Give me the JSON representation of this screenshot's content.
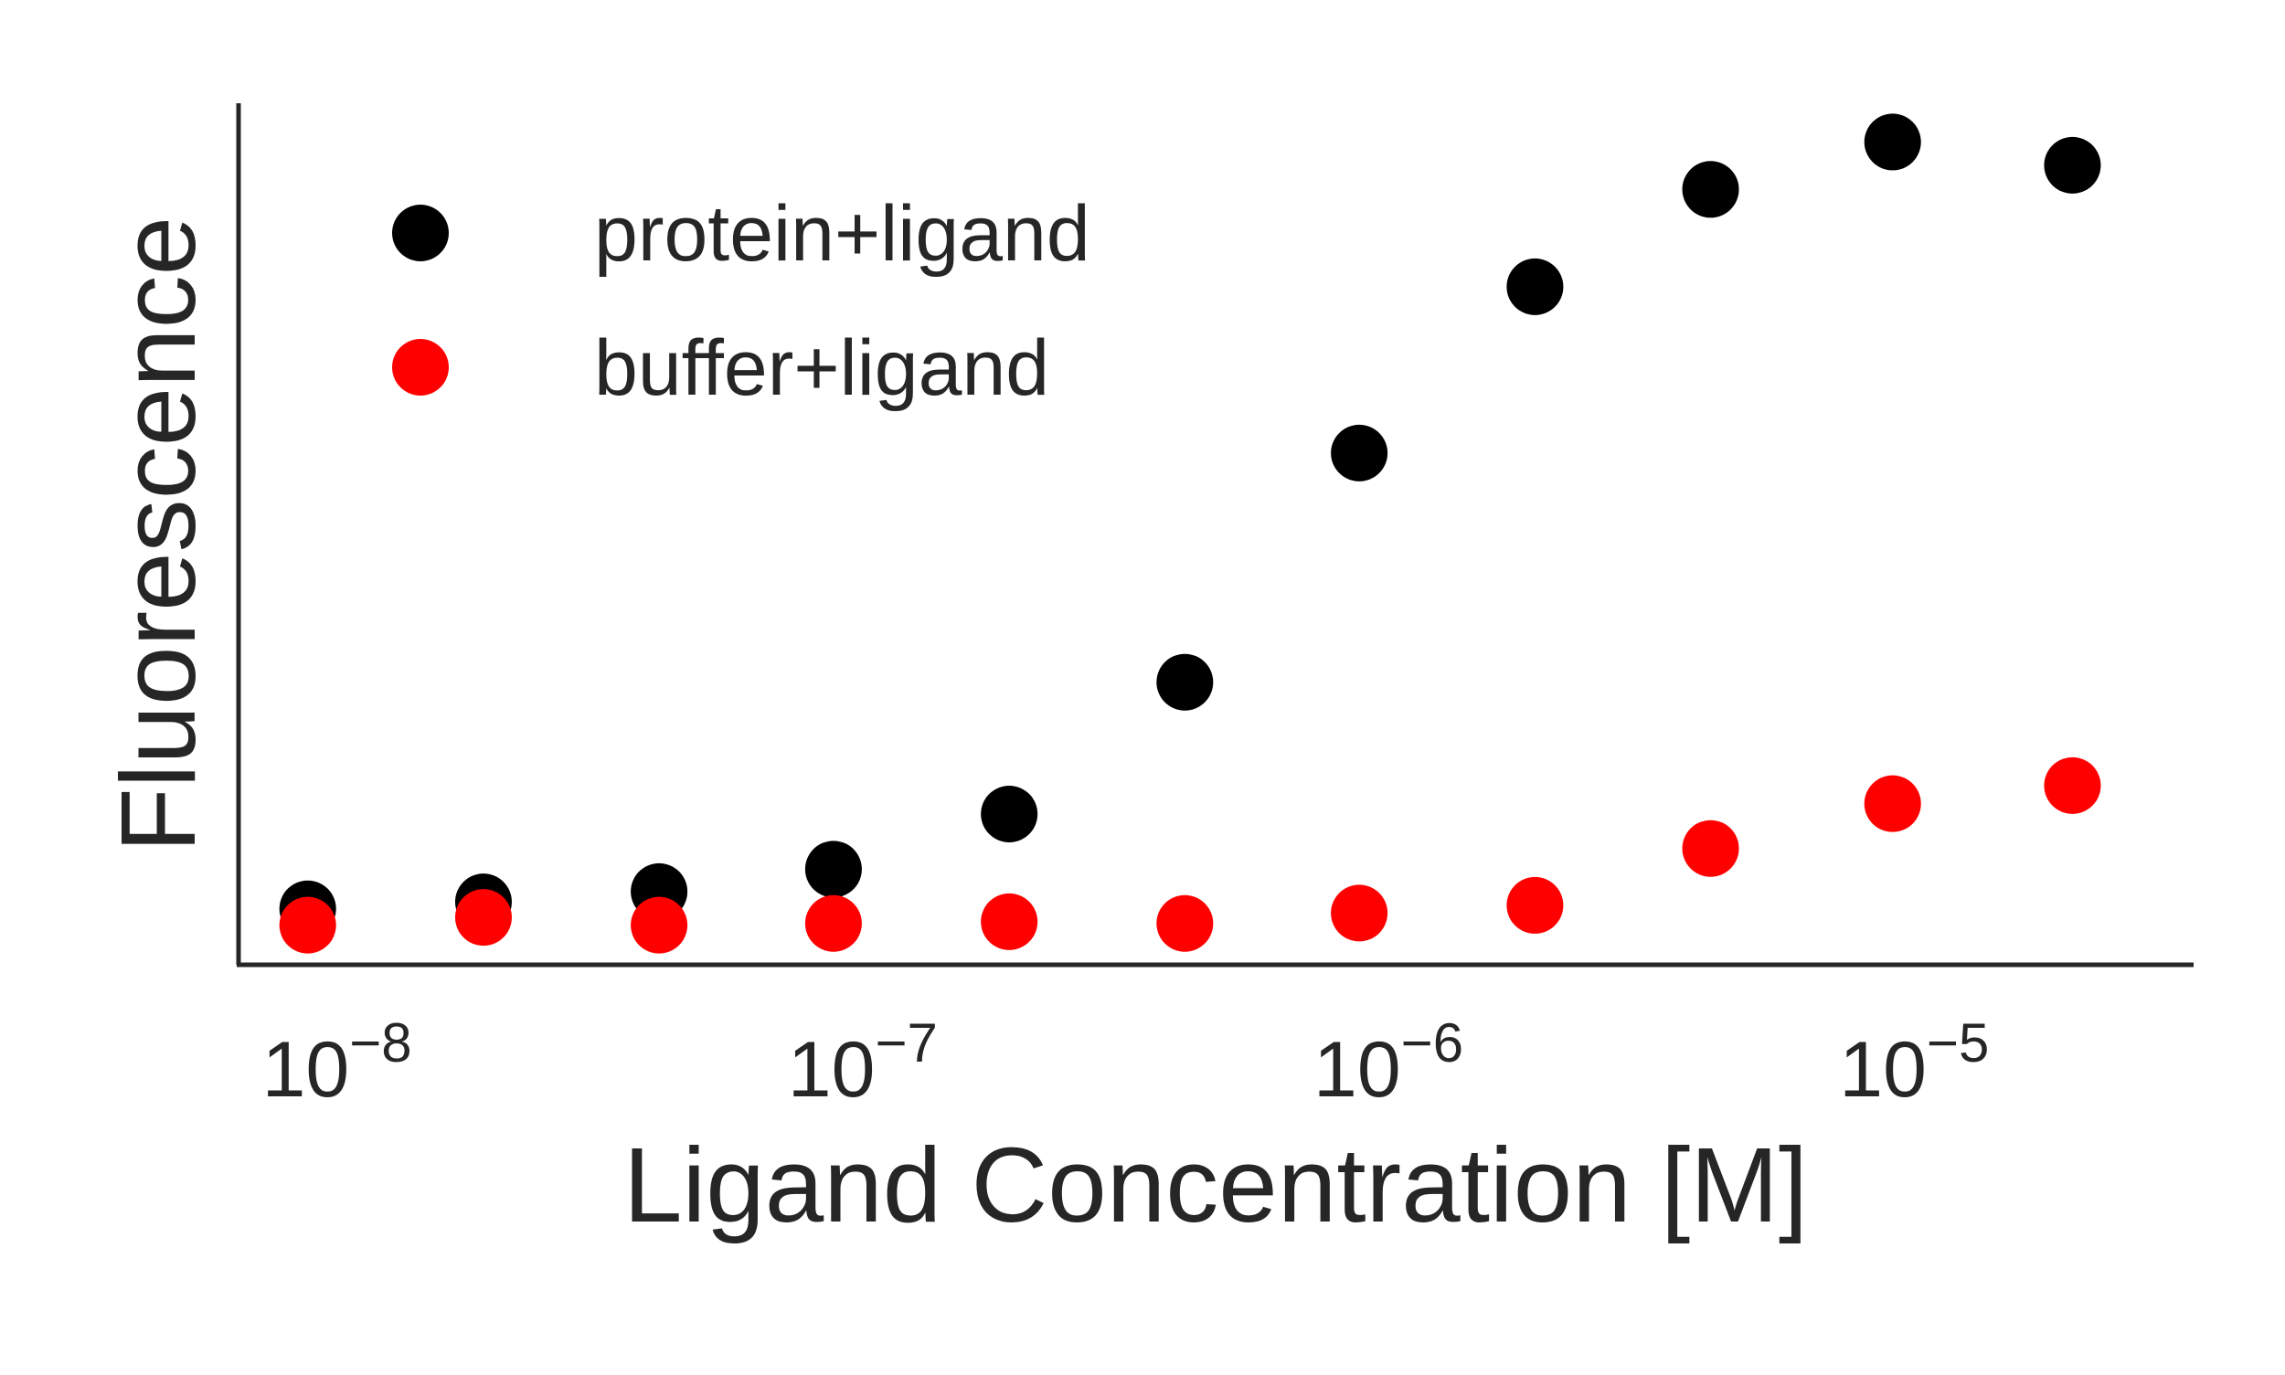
{
  "chart_data": {
    "type": "scatter",
    "title": "",
    "xlabel": "Ligand Concentration [M]",
    "ylabel": "Fluorescence",
    "x_scale": "log",
    "xlim": [
      6.5e-09,
      3.4e-05
    ],
    "ylim": [
      0,
      100
    ],
    "x_ticks": [
      {
        "value": 1e-08,
        "base": "10",
        "exp": "−8"
      },
      {
        "value": 1e-07,
        "base": "10",
        "exp": "−7"
      },
      {
        "value": 1e-06,
        "base": "10",
        "exp": "−6"
      },
      {
        "value": 1e-05,
        "base": "10",
        "exp": "−5"
      }
    ],
    "y_ticks_shown": false,
    "grid": false,
    "legend_position": "top-left",
    "x": [
      8.8e-09,
      1.9e-08,
      4.1e-08,
      8.8e-08,
      1.9e-07,
      4.1e-07,
      8.8e-07,
      1.9e-06,
      4.1e-06,
      9.1e-06,
      2e-05
    ],
    "series": [
      {
        "name": "protein+ligand",
        "color": "#000000",
        "values": [
          6.5,
          7.3,
          8.5,
          11.1,
          17.5,
          32.8,
          59.4,
          78.7,
          90.0,
          95.5,
          92.8
        ]
      },
      {
        "name": "buffer+ligand",
        "color": "#ff0000",
        "values": [
          4.6,
          5.5,
          4.6,
          4.8,
          5.0,
          4.8,
          6.0,
          6.9,
          13.5,
          18.7,
          20.8
        ]
      }
    ]
  }
}
